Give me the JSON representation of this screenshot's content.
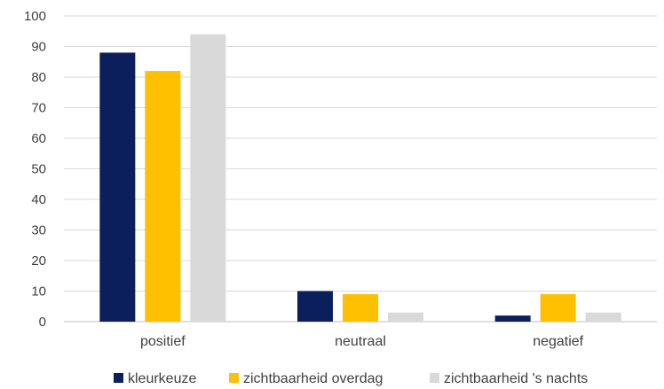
{
  "chart_data": {
    "type": "bar",
    "categories": [
      "positief",
      "neutraal",
      "negatief"
    ],
    "series": [
      {
        "name": "kleurkeuze",
        "color": "#0b1f5c",
        "values": [
          88,
          10,
          2
        ]
      },
      {
        "name": "zichtbaarheid overdag",
        "color": "#ffc000",
        "values": [
          82,
          9,
          9
        ]
      },
      {
        "name": "zichtbaarheid 's nachts",
        "color": "#d9d9d9",
        "values": [
          94,
          3,
          3
        ]
      }
    ],
    "ylim": [
      0,
      100
    ],
    "yticks": [
      0,
      10,
      20,
      30,
      40,
      50,
      60,
      70,
      80,
      90,
      100
    ],
    "grid": true,
    "legend_position": "bottom"
  }
}
